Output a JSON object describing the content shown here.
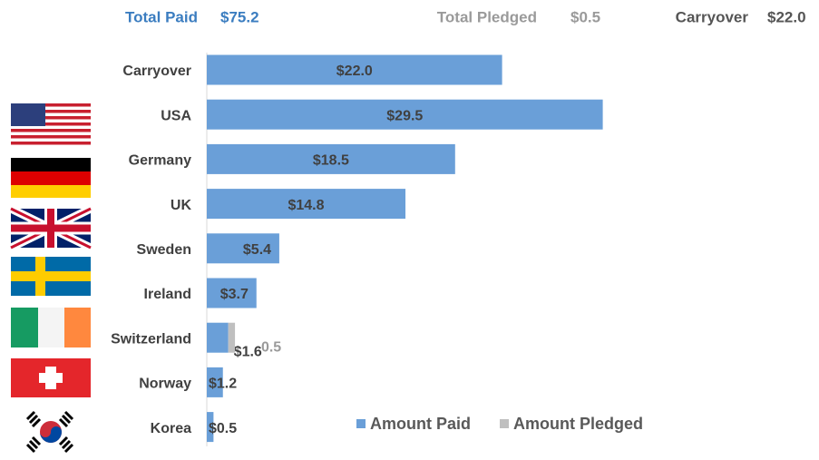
{
  "chart_data": {
    "type": "hbar_stacked",
    "totals": [
      {
        "label": "Total Paid",
        "value": "$75.2",
        "color": "#3b7dc0"
      },
      {
        "label": "Total Pledged",
        "value": "$0.5",
        "color": "#9a9a9a"
      },
      {
        "label": "Carryover",
        "value": "$22.0",
        "color": "#555555"
      }
    ],
    "categories": [
      "Carryover",
      "USA",
      "Germany",
      "UK",
      "Sweden",
      "Ireland",
      "Switzerland",
      "Norway",
      "Korea"
    ],
    "series": [
      {
        "name": "Amount Paid",
        "color": "#6a9fd8",
        "values": [
          22.0,
          29.5,
          18.5,
          14.8,
          5.4,
          3.7,
          1.6,
          1.2,
          0.5
        ],
        "value_labels": [
          "$22.0",
          "$29.5",
          "$18.5",
          "$14.8",
          "$5.4",
          "$3.7",
          "$1.6",
          "$1.2",
          "$0.5"
        ]
      },
      {
        "name": "Amount Pledged",
        "color": "#bfbfbf",
        "values": [
          null,
          null,
          null,
          null,
          null,
          null,
          0.5,
          null,
          null
        ]
      }
    ]
  }
}
